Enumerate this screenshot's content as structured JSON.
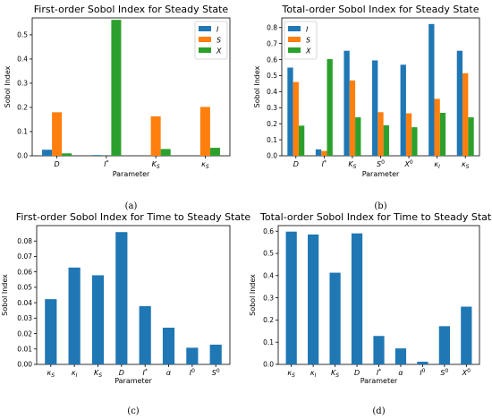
{
  "chart_data": [
    {
      "type": "bar",
      "title": "First-order Sobol Index for Steady State",
      "xlabel": "Parameter",
      "ylabel": "Sobol Index",
      "caption": "(a)",
      "categories": [
        "D",
        "I*",
        "K_S",
        "κ_S"
      ],
      "series": [
        {
          "name": "I",
          "values": [
            0.025,
            0.003,
            0.0,
            0.0
          ]
        },
        {
          "name": "S",
          "values": [
            0.18,
            0.0,
            0.163,
            0.202
          ]
        },
        {
          "name": "X",
          "values": [
            0.01,
            0.562,
            0.028,
            0.033
          ]
        }
      ],
      "ylim": [
        0,
        0.57
      ],
      "yticks": [
        0.0,
        0.1,
        0.2,
        0.3,
        0.4,
        0.5
      ],
      "yticklabels": [
        "0.0",
        "0.1",
        "0.2",
        "0.3",
        "0.4",
        "0.5"
      ],
      "legend": "top-right",
      "grid": false
    },
    {
      "type": "bar",
      "title": "Total-order Sobol Index for Steady State",
      "xlabel": "Parameter",
      "ylabel": "Sobol Index",
      "caption": "(b)",
      "categories": [
        "D",
        "I*",
        "K_S",
        "S⁰",
        "X⁰",
        "κ_I",
        "κ_S"
      ],
      "series": [
        {
          "name": "I",
          "values": [
            0.55,
            0.04,
            0.655,
            0.595,
            0.568,
            0.822,
            0.655
          ]
        },
        {
          "name": "S",
          "values": [
            0.46,
            0.03,
            0.47,
            0.272,
            0.265,
            0.355,
            0.515
          ]
        },
        {
          "name": "X",
          "values": [
            0.188,
            0.603,
            0.24,
            0.19,
            0.178,
            0.268,
            0.24
          ]
        }
      ],
      "ylim": [
        0,
        0.86
      ],
      "yticks": [
        0.0,
        0.1,
        0.2,
        0.3,
        0.4,
        0.5,
        0.6,
        0.7,
        0.8
      ],
      "yticklabels": [
        "0.0",
        "0.1",
        "0.2",
        "0.3",
        "0.4",
        "0.5",
        "0.6",
        "0.7",
        "0.8"
      ],
      "legend": "top-left",
      "grid": false
    },
    {
      "type": "bar",
      "title": "First-order Sobol Index for Time to Steady State",
      "xlabel": "Parameter",
      "ylabel": "Sobol Index",
      "caption": "(c)",
      "categories": [
        "κ_S",
        "κ_I",
        "K_S",
        "D",
        "I*",
        "α",
        "I⁰",
        "S⁰"
      ],
      "values": [
        0.0423,
        0.0628,
        0.0578,
        0.0858,
        0.0378,
        0.0238,
        0.0108,
        0.0128
      ],
      "ylim": [
        0,
        0.09
      ],
      "yticks": [
        0.0,
        0.01,
        0.02,
        0.03,
        0.04,
        0.05,
        0.06,
        0.07,
        0.08
      ],
      "yticklabels": [
        "0.00",
        "0.01",
        "0.02",
        "0.03",
        "0.04",
        "0.05",
        "0.06",
        "0.07",
        "0.08"
      ],
      "grid": false
    },
    {
      "type": "bar",
      "title": "Total-order Sobol Index for Time to Steady State",
      "xlabel": "Parameter",
      "ylabel": "Sobol Index",
      "caption": "(d)",
      "categories": [
        "κ_S",
        "κ_I",
        "K_S",
        "D",
        "I*",
        "α",
        "I⁰",
        "S⁰",
        "X⁰"
      ],
      "values": [
        0.598,
        0.585,
        0.413,
        0.59,
        0.128,
        0.072,
        0.012,
        0.172,
        0.26
      ],
      "ylim": [
        0,
        0.625
      ],
      "yticks": [
        0.0,
        0.1,
        0.2,
        0.3,
        0.4,
        0.5,
        0.6
      ],
      "yticklabels": [
        "0.0",
        "0.1",
        "0.2",
        "0.3",
        "0.4",
        "0.5",
        "0.6"
      ],
      "grid": false
    }
  ],
  "colors": {
    "I": "#1f77b4",
    "S": "#ff7f0e",
    "X": "#2ca02c",
    "single": "#1f77b4"
  }
}
